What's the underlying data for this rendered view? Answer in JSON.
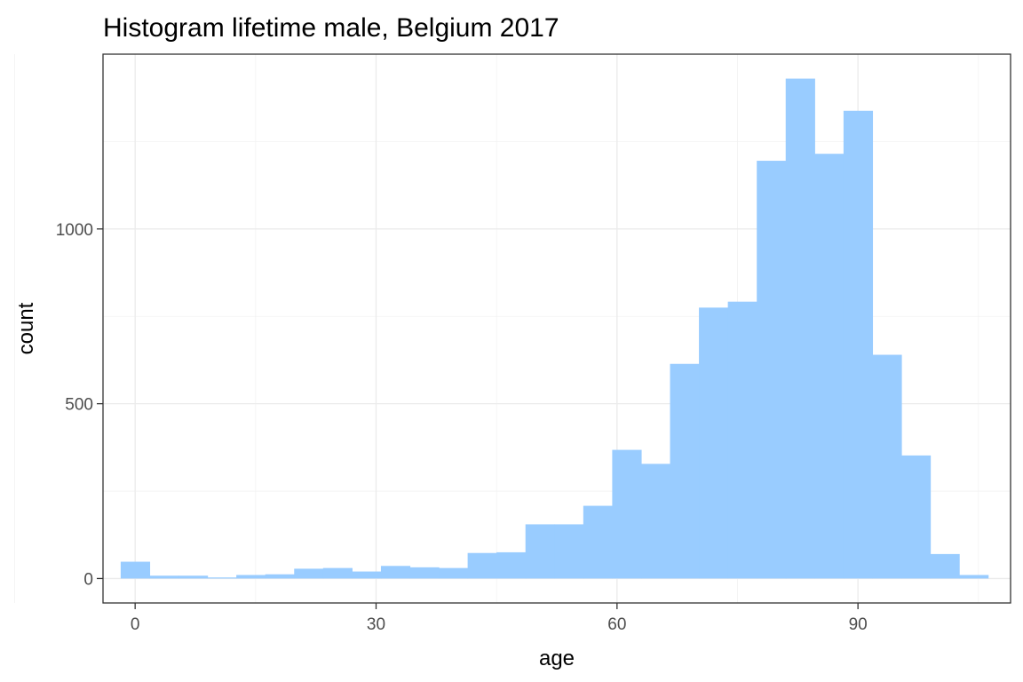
{
  "chart_data": {
    "type": "bar",
    "title": "Histogram lifetime male, Belgium 2017",
    "xlabel": "age",
    "ylabel": "count",
    "fill_color": "#99CCFF",
    "xlim": [
      -4,
      109
    ],
    "ylim": [
      -70,
      1500
    ],
    "x_ticks": [
      0,
      30,
      60,
      90
    ],
    "y_ticks": [
      0,
      500,
      1000
    ],
    "grid": true,
    "bin_width": 3.6,
    "bin_centers": [
      0,
      3.6,
      7.2,
      10.8,
      14.4,
      18,
      21.6,
      25.2,
      28.8,
      32.4,
      36,
      39.6,
      43.2,
      46.8,
      50.4,
      54,
      57.6,
      61.2,
      64.8,
      68.4,
      72,
      75.6,
      79.2,
      82.8,
      86.4,
      90,
      93.6,
      97.2,
      100.8,
      104.4
    ],
    "values": [
      48,
      8,
      8,
      3,
      10,
      12,
      28,
      30,
      20,
      36,
      32,
      30,
      73,
      75,
      155,
      155,
      208,
      368,
      328,
      614,
      775,
      792,
      1195,
      1430,
      1215,
      1338,
      640,
      352,
      70,
      10
    ]
  }
}
